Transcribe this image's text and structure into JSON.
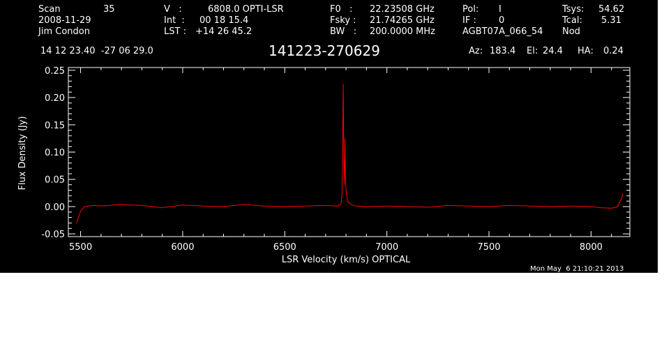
{
  "header": {
    "scan_label": "Scan",
    "scan_value": "35",
    "date": "2008-11-29",
    "observer": "Jim Condon",
    "v_label": "V   :",
    "v_value": "6808.0 OPTI-LSR",
    "int_label": "Int  :",
    "int_value": "00 18 15.4",
    "lst_label": "LST :",
    "lst_value": "+14 26 45.2",
    "f0_label": "F0   :",
    "f0_value": "22.23508 GHz",
    "fsky_label": "Fsky :",
    "fsky_value": "21.74265 GHz",
    "bw_label": "BW   :",
    "bw_value": "200.0000 MHz",
    "pol_label": "Pol:",
    "pol_value": "I",
    "if_label": "IF :",
    "if_value": "0",
    "project": "AGBT07A_066_54",
    "tsys_label": "Tsys:",
    "tsys_value": "54.62",
    "tcal_label": "Tcal:",
    "tcal_value": "5.31",
    "mode": "Nod",
    "coords": "14 12 23.40  -27 06 29.0",
    "source": "141223-270629",
    "az_label": "Az:",
    "az_value": "183.4",
    "el_label": "El:",
    "el_value": "24.4",
    "ha_label": "HA:",
    "ha_value": "0.24"
  },
  "timestamp": "Mon May  6 21:10:21 2013",
  "colors": {
    "background": "#000000",
    "axes": "#ffffff",
    "trace": "#ff0000"
  },
  "chart_data": {
    "type": "line",
    "xlabel": "LSR Velocity (km/s) OPTICAL",
    "ylabel": "Flux Density (Jy)",
    "xlim": [
      5440,
      8190
    ],
    "ylim": [
      -0.055,
      0.255
    ],
    "x_ticks": [
      5500,
      6000,
      6500,
      7000,
      7500,
      8000
    ],
    "x_tick_labels": [
      "5500",
      "6000",
      "6500",
      "7000",
      "7500",
      "8000"
    ],
    "y_ticks": [
      -0.05,
      0.0,
      0.05,
      0.1,
      0.15,
      0.2,
      0.25
    ],
    "y_tick_labels": [
      "-0.05",
      "0.00",
      "0.05",
      "0.10",
      "0.15",
      "0.20",
      "0.25"
    ],
    "grid": false,
    "series": [
      {
        "color": "#ff0000",
        "x": [
          5480,
          5490,
          5500,
          5520,
          5560,
          5600,
          5700,
          5800,
          5900,
          6000,
          6100,
          6200,
          6300,
          6400,
          6500,
          6600,
          6700,
          6760,
          6775,
          6780,
          6783,
          6786,
          6789,
          6792,
          6795,
          6797,
          6800,
          6805,
          6810,
          6830,
          6850,
          6900,
          7000,
          7100,
          7200,
          7300,
          7400,
          7500,
          7600,
          7700,
          7800,
          7900,
          8000,
          8050,
          8100,
          8130,
          8140,
          8150,
          8155
        ],
        "y": [
          -0.03,
          -0.02,
          -0.008,
          0.0,
          0.002,
          0.001,
          0.004,
          0.002,
          -0.002,
          0.003,
          0.001,
          0.0,
          0.004,
          0.001,
          0.0,
          0.001,
          0.002,
          0.001,
          0.005,
          0.02,
          0.08,
          0.225,
          0.09,
          0.04,
          0.125,
          0.06,
          0.03,
          0.015,
          0.008,
          0.003,
          0.001,
          0.0,
          0.001,
          0.0,
          -0.001,
          0.002,
          0.001,
          0.0,
          0.002,
          0.001,
          0.0,
          0.001,
          0.0,
          -0.002,
          -0.003,
          0.0,
          0.008,
          0.015,
          0.024
        ]
      }
    ]
  }
}
